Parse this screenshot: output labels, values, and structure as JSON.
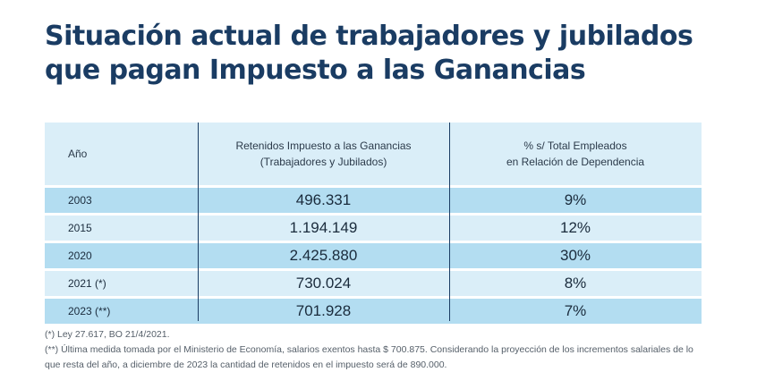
{
  "title": {
    "line1": "Situación actual de trabajadores y jubilados",
    "line2": "que pagan Impuesto a las Ganancias"
  },
  "table": {
    "headers": {
      "year": "Año",
      "retained_line1": "Retenidos Impuesto a las Ganancias",
      "retained_line2": "(Trabajadores y Jubilados)",
      "percent_line1": "% s/ Total Empleados",
      "percent_line2": "en Relación de Dependencia"
    },
    "rows": [
      {
        "year": "2003",
        "retained": "496.331",
        "percent": "9%"
      },
      {
        "year": "2015",
        "retained": "1.194.149",
        "percent": "12%"
      },
      {
        "year": "2020",
        "retained": "2.425.880",
        "percent": "30%"
      },
      {
        "year": "2021 (*)",
        "retained": "730.024",
        "percent": "8%"
      },
      {
        "year": "2023 (**)",
        "retained": "701.928",
        "percent": "7%"
      }
    ]
  },
  "notes": {
    "note1": "(*) Ley 27.617, BO 21/4/2021.",
    "note2": "(**) Última medida tomada por el Ministerio de Economía, salarios exentos hasta $ 700.875. Considerando la proyección de los incrementos salariales de lo que resta del año, a diciembre de 2023 la cantidad de retenidos en el impuesto será de 890.000."
  },
  "colors": {
    "title": "#1a3c63",
    "header_bg": "#daeef8",
    "row_dark": "#b3ddf1",
    "row_light": "#daeef8"
  }
}
